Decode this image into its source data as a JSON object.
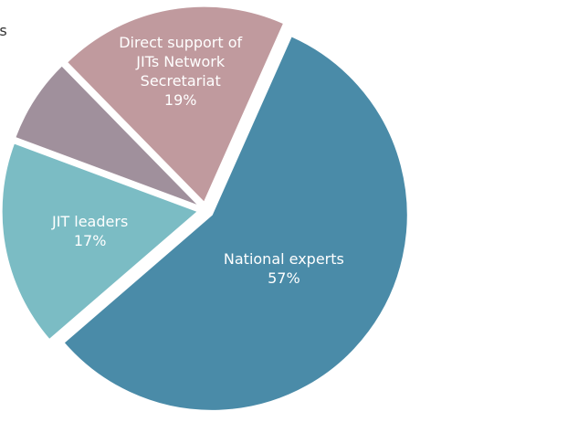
{
  "chart_data": {
    "type": "pie",
    "categories": [
      "National experts",
      "JIT leaders",
      "EJ National Desks",
      "Direct support of JITs Network Secretariat"
    ],
    "values": [
      57,
      17,
      7,
      19
    ],
    "value_labels": [
      "57%",
      "17%",
      "7%",
      "19%"
    ],
    "colors": [
      "#4a8ba8",
      "#7bbcc4",
      "#a0909c",
      "#c09a9e"
    ]
  }
}
